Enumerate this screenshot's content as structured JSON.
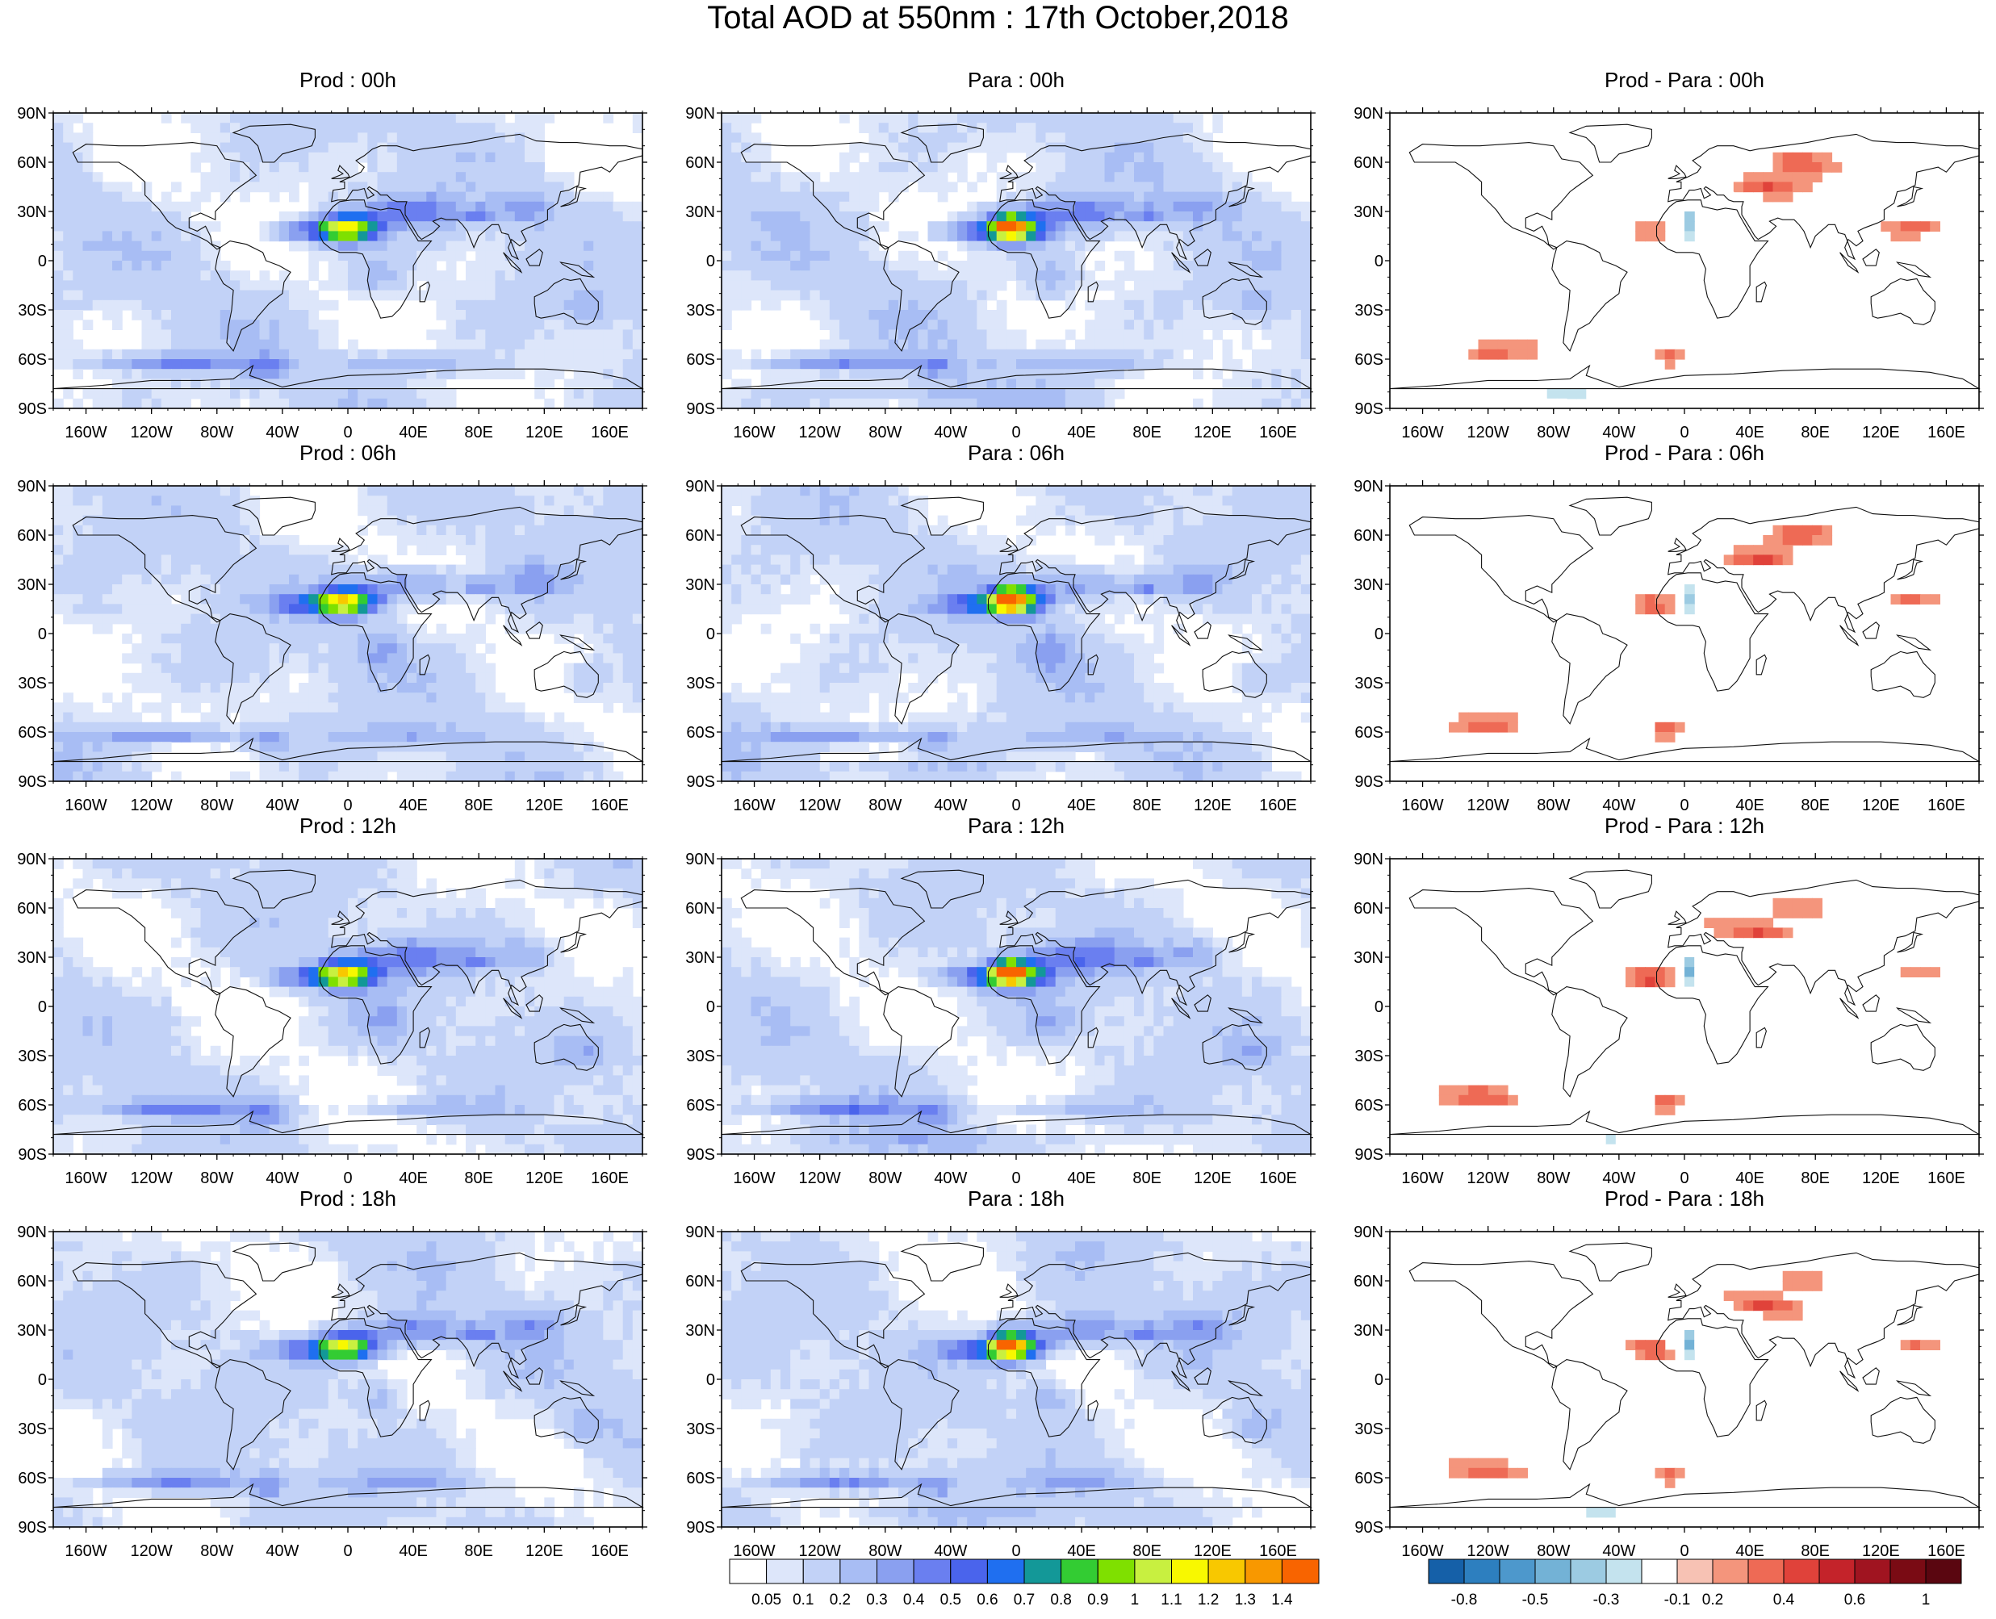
{
  "title": "Total AOD at 550nm : 17th October,2018",
  "lat_labels": [
    "90N",
    "60N",
    "30N",
    "0",
    "30S",
    "60S",
    "90S"
  ],
  "lon_labels": [
    "160W",
    "120W",
    "80W",
    "40W",
    "0",
    "40E",
    "80E",
    "120E",
    "160E"
  ],
  "lon_values": [
    -160,
    -120,
    -80,
    -40,
    0,
    40,
    80,
    120,
    160
  ],
  "lat_values": [
    90,
    60,
    30,
    0,
    -30,
    -60,
    -90
  ],
  "rows": [
    {
      "hour": "00h",
      "titles": [
        "Prod : 00h",
        "Para : 00h",
        "Prod - Para : 00h"
      ]
    },
    {
      "hour": "06h",
      "titles": [
        "Prod : 06h",
        "Para : 06h",
        "Prod - Para : 06h"
      ]
    },
    {
      "hour": "12h",
      "titles": [
        "Prod : 12h",
        "Para : 12h",
        "Prod - Para : 12h"
      ]
    },
    {
      "hour": "18h",
      "titles": [
        "Prod : 18h",
        "Para : 18h",
        "Prod - Para : 18h"
      ]
    }
  ],
  "aod_colorbar": {
    "labels": [
      "0.05",
      "0.1",
      "0.2",
      "0.3",
      "0.4",
      "0.5",
      "0.6",
      "0.7",
      "0.8",
      "0.9",
      "1",
      "1.1",
      "1.2",
      "1.3",
      "1.4"
    ],
    "colors": [
      "#ffffff",
      "#dde6fa",
      "#c2d2f7",
      "#a8bdf4",
      "#8aa0f0",
      "#6a7ff0",
      "#4a64ec",
      "#1f6ff0",
      "#139898",
      "#33cc33",
      "#7fe000",
      "#c8f040",
      "#f8f800",
      "#f8c800",
      "#f89800",
      "#f86400"
    ]
  },
  "diff_colorbar": {
    "labels": [
      "-0.8",
      "-0.5",
      "-0.3",
      "-0.1",
      "0.2",
      "0.4",
      "0.6",
      "1"
    ],
    "colors": [
      "#1560a8",
      "#2d7fbf",
      "#4d98cc",
      "#73b2d6",
      "#9ccbe2",
      "#c4e3ee",
      "#ffffff",
      "#f7c2b4",
      "#f4957c",
      "#ee6a55",
      "#e0423a",
      "#c4232a",
      "#a01420",
      "#7a0b14",
      "#5a0610"
    ]
  }
}
